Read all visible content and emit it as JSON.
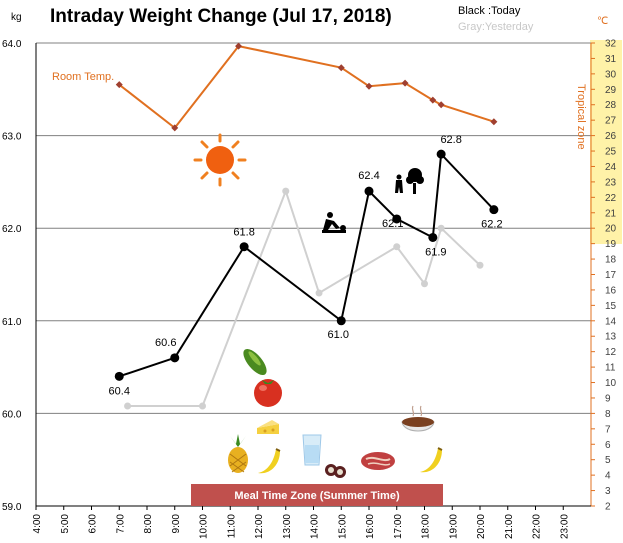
{
  "chart_data": {
    "type": "line",
    "title": "Intraday Weight Change (Jul 17, 2018)",
    "y_unit_left": "kg",
    "y_unit_right": "℃",
    "legend": {
      "today": "Black :Today",
      "yesterday": "Gray:Yesterday"
    },
    "y_left_ticks": [
      "64.0",
      "63.0",
      "62.0",
      "61.0",
      "60.0",
      "59.0"
    ],
    "y_left_lim": [
      59.0,
      64.0
    ],
    "y_right_ticks": [
      "32",
      "31",
      "30",
      "29",
      "28",
      "27",
      "26",
      "25",
      "24",
      "23",
      "22",
      "21",
      "20",
      "19",
      "18",
      "17",
      "16",
      "15",
      "14",
      "13",
      "12",
      "11",
      "10",
      "9",
      "8",
      "7",
      "6",
      "5",
      "4",
      "3",
      "2"
    ],
    "y_right_lim": [
      2,
      32
    ],
    "x_ticks": [
      "4:00",
      "5:00",
      "6:00",
      "7:00",
      "8:00",
      "9:00",
      "10:00",
      "11:00",
      "12:00",
      "13:00",
      "14:00",
      "15:00",
      "16:00",
      "17:00",
      "18:00",
      "19:00",
      "20:00",
      "21:00",
      "22:00",
      "23:00"
    ],
    "x_lim": [
      4,
      24
    ],
    "series": [
      {
        "name": "Black :Today",
        "color": "#000000",
        "x": [
          7.0,
          9.0,
          11.5,
          15.0,
          16.0,
          17.0,
          18.3,
          18.6,
          20.5
        ],
        "y": [
          60.4,
          60.6,
          61.8,
          61.0,
          62.4,
          62.1,
          61.9,
          62.8,
          62.2
        ],
        "labels": [
          "60.4",
          "60.6",
          "61.8",
          "61.0",
          "62.4",
          "62.1",
          "61.9",
          "62.8",
          "62.2"
        ]
      },
      {
        "name": "Gray:Yesterday",
        "color": "#d0d0d0",
        "x": [
          7.3,
          10.0,
          13.0,
          14.2,
          17.0,
          18.0,
          18.6,
          20.0
        ],
        "y": [
          60.08,
          60.08,
          62.4,
          61.3,
          61.8,
          61.4,
          62.0,
          61.6
        ]
      },
      {
        "name": "Room Temp.",
        "color": "#e07020",
        "axis": "right",
        "x": [
          7.0,
          9.0,
          11.3,
          15.0,
          16.0,
          17.3,
          18.3,
          18.6,
          20.5
        ],
        "y": [
          29.3,
          26.5,
          31.8,
          30.4,
          29.2,
          29.4,
          28.3,
          28.0,
          26.9
        ]
      }
    ],
    "annotations": {
      "room_temp_label": "Room Temp.",
      "tropical_zone_label": "Tropical zone",
      "meal_zone_label": "Meal Time Zone  (Summer Time)"
    },
    "grid": "horizontal",
    "colors": {
      "today": "#000000",
      "yesterday": "#d0d0d0",
      "room_temp": "#e07020",
      "tropical_band": "#fff2a8",
      "meal_band": "#c0504d"
    },
    "icons": [
      "sun-icon",
      "gardening-person-icon",
      "person-with-tree-icon",
      "cucumber-icon",
      "tomato-icon",
      "pineapple-icon",
      "cheese-icon",
      "banana-icon",
      "water-glass-icon",
      "sushi-icon",
      "steak-icon",
      "soup-bowl-icon"
    ]
  }
}
